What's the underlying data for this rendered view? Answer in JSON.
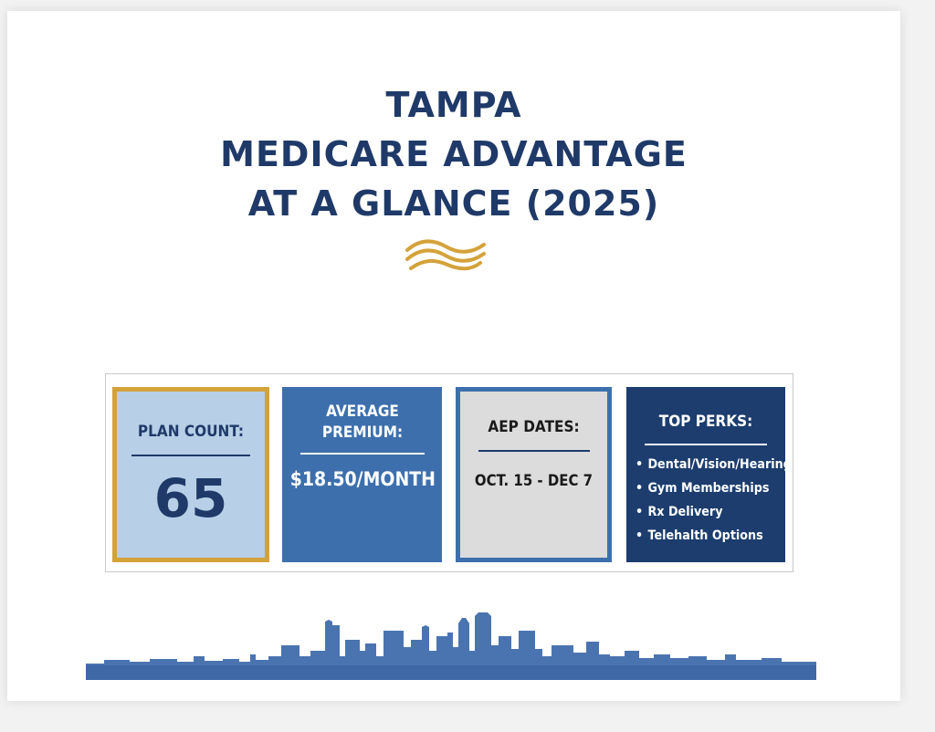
{
  "title": {
    "line1": "TAMPA",
    "line2": "MEDICARE ADVANTAGE",
    "line3": "AT A GLANCE (2025)"
  },
  "colors": {
    "navy": "#1f3a68",
    "blue": "#3d6fad",
    "light_blue": "#b7cfe7",
    "gold": "#d4a23a",
    "gray": "#dcdcdc",
    "dark_navy": "#1c3d6e"
  },
  "stats": {
    "plan_count": {
      "label": "PLAN COUNT:",
      "value": "65"
    },
    "premium": {
      "label": "AVERAGE PREMIUM:",
      "value": "$18.50/MONTH"
    },
    "aep": {
      "label": "AEP DATES:",
      "value": "OCT. 15 - DEC 7"
    },
    "perks": {
      "label": "TOP PERKS:",
      "items": [
        "Dental/Vision/Hearing",
        "Gym Memberships",
        "Rx Delivery",
        "Telehalth Options"
      ]
    }
  },
  "decor": {
    "divider": "wave-divider-icon",
    "footer": "city-skyline-icon"
  }
}
